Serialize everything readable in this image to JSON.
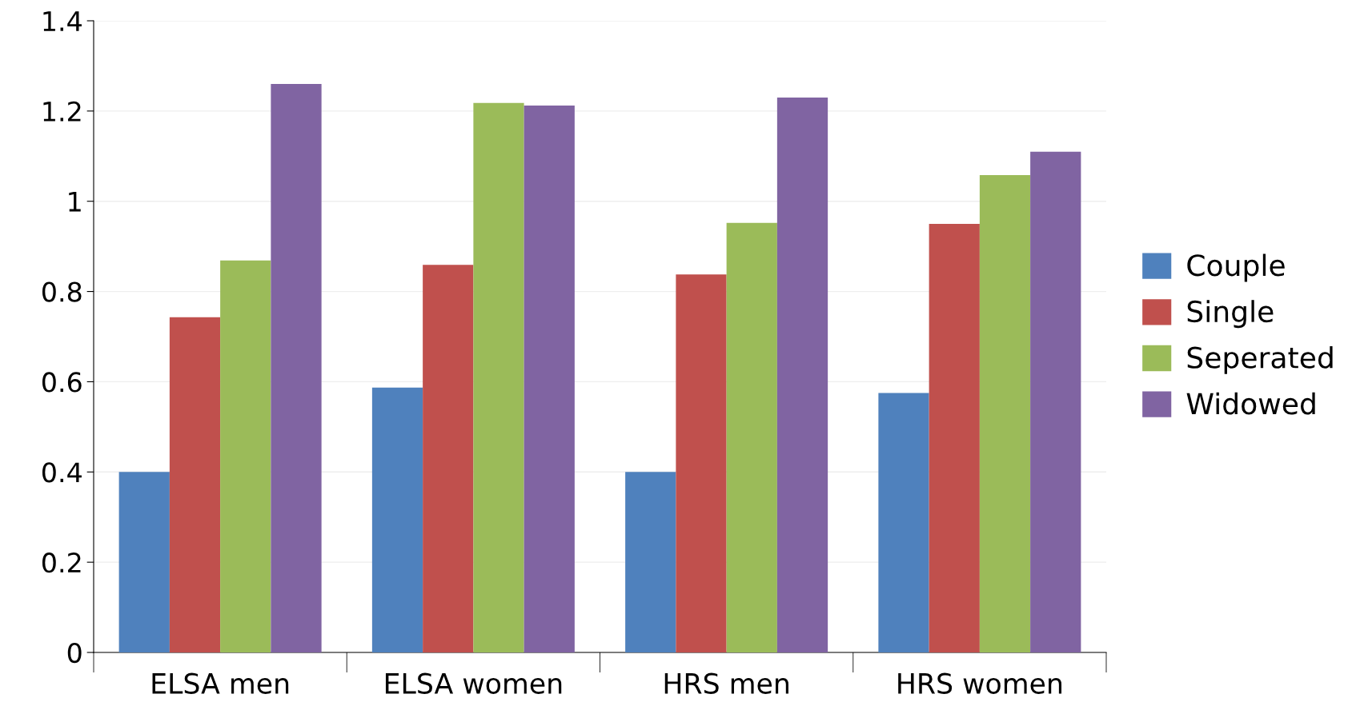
{
  "chart_data": {
    "type": "bar",
    "categories": [
      "ELSA men",
      "ELSA women",
      "HRS men",
      "HRS women"
    ],
    "series": [
      {
        "name": "Couple",
        "color": "#4f81bd",
        "values": [
          0.4,
          0.587,
          0.4,
          0.575
        ]
      },
      {
        "name": "Single",
        "color": "#c0504d",
        "values": [
          0.743,
          0.859,
          0.838,
          0.95
        ]
      },
      {
        "name": "Seperated",
        "color": "#9bbb59",
        "values": [
          0.869,
          1.218,
          0.952,
          1.058
        ]
      },
      {
        "name": "Widowed",
        "color": "#8064a2",
        "values": [
          1.26,
          1.212,
          1.23,
          1.11
        ]
      }
    ],
    "ylim": [
      0,
      1.4
    ],
    "yticks": [
      0,
      0.2,
      0.4,
      0.6,
      0.8,
      1,
      1.2,
      1.4
    ],
    "grid": "y",
    "legend": "right"
  }
}
